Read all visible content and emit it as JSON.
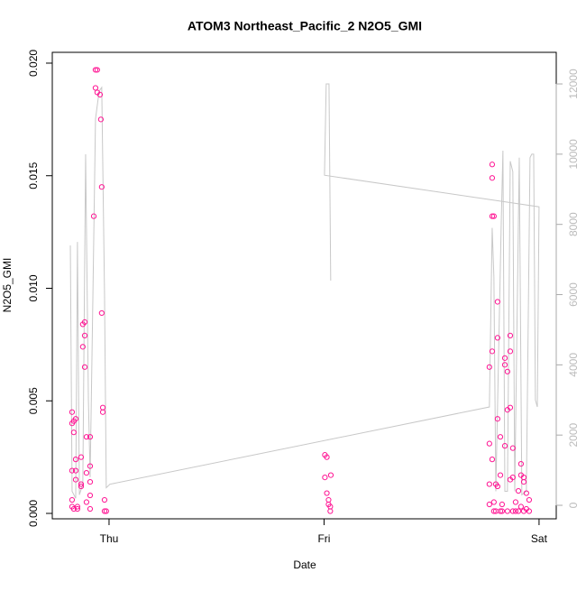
{
  "chart_data": {
    "type": "scatter",
    "title": "ATOM3 Northeast_Pacific_2 N2O5_GMI",
    "x_label": "Date",
    "y_label": "N2O5_GMI",
    "color": "#ff1493",
    "xlim": [
      -0.264,
      2.08
    ],
    "xticks": [
      {
        "value": 0,
        "label": "Thu"
      },
      {
        "value": 1,
        "label": "Fri"
      },
      {
        "value": 2,
        "label": "Sat"
      }
    ],
    "ylim": [
      -0.00024,
      0.02048
    ],
    "yticks": [
      {
        "value": 0,
        "label": "0.000"
      },
      {
        "value": 0.005,
        "label": "0.005"
      },
      {
        "value": 0.01,
        "label": "0.010"
      },
      {
        "value": 0.015,
        "label": "0.015"
      },
      {
        "value": 0.02,
        "label": "0.020"
      }
    ],
    "y2lim": [
      -385,
      12900
    ],
    "y2ticks": [
      0,
      2000,
      4000,
      6000,
      8000,
      10000,
      12000
    ],
    "x": [
      -0.172,
      -0.172,
      -0.172,
      -0.172,
      -0.172,
      -0.164,
      -0.164,
      -0.164,
      -0.155,
      -0.155,
      -0.155,
      -0.155,
      -0.147,
      -0.147,
      -0.13,
      -0.13,
      -0.13,
      -0.122,
      -0.122,
      -0.113,
      -0.113,
      -0.113,
      -0.105,
      -0.105,
      -0.105,
      -0.088,
      -0.088,
      -0.088,
      -0.088,
      -0.088,
      -0.071,
      -0.063,
      -0.063,
      -0.055,
      -0.055,
      -0.042,
      -0.038,
      -0.034,
      -0.034,
      -0.029,
      -0.029,
      -0.021,
      -0.021,
      -0.013,
      1.004,
      1.004,
      1.013,
      1.013,
      1.021,
      1.021,
      1.029,
      1.029,
      1.0315,
      1.769,
      1.769,
      1.769,
      1.769,
      1.782,
      1.782,
      1.782,
      1.782,
      1.782,
      1.79,
      1.79,
      1.79,
      1.799,
      1.799,
      1.807,
      1.807,
      1.807,
      1.807,
      1.82,
      1.82,
      1.82,
      1.828,
      1.828,
      1.841,
      1.841,
      1.841,
      1.853,
      1.853,
      1.853,
      1.866,
      1.866,
      1.866,
      1.866,
      1.878,
      1.878,
      1.878,
      1.891,
      1.891,
      1.904,
      1.904,
      1.916,
      1.916,
      1.916,
      1.929,
      1.929,
      1.929,
      1.941,
      1.941,
      1.954,
      1.954
    ],
    "values": [
      0.0045,
      0.004,
      0.0019,
      0.0006,
      0.0003,
      0.0002,
      0.0036,
      0.0041,
      0.0042,
      0.0024,
      0.0019,
      0.0015,
      0.0003,
      0.0002,
      0.0012,
      0.0025,
      0.0013,
      0.0074,
      0.0084,
      0.0079,
      0.0085,
      0.0065,
      0.0018,
      0.0034,
      0.0005,
      0.0002,
      0.0008,
      0.0014,
      0.0021,
      0.0034,
      0.0132,
      0.0189,
      0.0197,
      0.0187,
      0.0197,
      0.0186,
      0.0175,
      0.0145,
      0.0089,
      0.0047,
      0.0045,
      0.0006,
      0.0001,
      0.0001,
      0.0026,
      0.0016,
      0.0025,
      0.0009,
      0.0006,
      0.0004,
      0.0003,
      0.0001,
      0.0017,
      0.0004,
      0.0013,
      0.0031,
      0.0065,
      0.0155,
      0.0149,
      0.0132,
      0.0072,
      0.0024,
      0.0132,
      0.0005,
      0.0001,
      0.0001,
      0.0013,
      0.0094,
      0.0078,
      0.0042,
      0.0012,
      0.0017,
      0.0034,
      0.0001,
      0.0004,
      0.0001,
      0.0069,
      0.0066,
      0.003,
      0.0063,
      0.0046,
      0.0001,
      0.0079,
      0.0072,
      0.0047,
      0.0015,
      0.0029,
      0.0016,
      0.0001,
      0.0005,
      0.0001,
      0.001,
      0.0001,
      0.0022,
      0.0017,
      0.0003,
      0.0016,
      0.0014,
      0.0001,
      0.0009,
      0.0002,
      0.0006,
      0.0001
    ],
    "line": {
      "color": "#c8c8c8",
      "axis": "y2",
      "x": [
        -0.18,
        -0.172,
        -0.155,
        -0.147,
        -0.138,
        -0.122,
        -0.109,
        -0.096,
        -0.088,
        -0.075,
        -0.063,
        -0.046,
        -0.034,
        -0.021,
        -0.013,
        0.004,
        1.769,
        1.782,
        1.79,
        1.799,
        1.824,
        1.832,
        1.841,
        1.853,
        1.866,
        1.878,
        1.887,
        1.908,
        1.92,
        1.941,
        1.958,
        1.966,
        1.975,
        1.983,
        1.992,
        2.0,
        1.002,
        1.01,
        1.023,
        1.031
      ],
      "values": [
        7400,
        400,
        200,
        7500,
        300,
        600,
        10000,
        3000,
        800,
        6000,
        11000,
        11800,
        11900,
        6000,
        500,
        600,
        2800,
        7900,
        6500,
        400,
        8000,
        10100,
        400,
        400,
        9800,
        9500,
        400,
        9900,
        300,
        400,
        9900,
        10000,
        10000,
        3000,
        2800,
        8500,
        9400,
        12000,
        12000,
        6400
      ]
    }
  }
}
